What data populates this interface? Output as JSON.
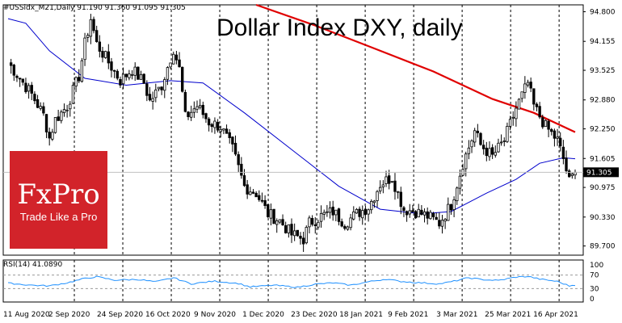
{
  "header": {
    "symbol_info": "#USSidx_M21,Daily  91.190 91.360 91.095 91.305",
    "title": "Dollar Index DXY, daily"
  },
  "logo": {
    "name": "FxPro",
    "tagline": "Trade Like a Pro",
    "color": "#d2232a"
  },
  "rsi_panel": {
    "label": "RSI(14) 41.0890"
  },
  "chart_data": [
    {
      "type": "candlestick",
      "title": "Dollar Index DXY, daily",
      "ylim": [
        89.5,
        94.95
      ],
      "y_ticks": [
        "94.800",
        "94.155",
        "93.525",
        "92.880",
        "92.250",
        "91.605",
        "90.975",
        "90.330",
        "89.700"
      ],
      "x_ticks": [
        "11 Aug 2020",
        "2 Sep 2020",
        "24 Sep 2020",
        "16 Oct 2020",
        "9 Nov 2020",
        "1 Dec 2020",
        "23 Dec 2020",
        "18 Jan 2021",
        "9 Feb 2021",
        "3 Mar 2021",
        "25 Mar 2021",
        "16 Apr 2021"
      ],
      "last_price": "91.305",
      "anchors": [
        {
          "d": 0,
          "c": 93.7
        },
        {
          "d": 4,
          "c": 93.35
        },
        {
          "d": 8,
          "c": 93.0
        },
        {
          "d": 12,
          "c": 92.55
        },
        {
          "d": 14,
          "c": 92.05
        },
        {
          "d": 16,
          "c": 92.45
        },
        {
          "d": 20,
          "c": 92.75
        },
        {
          "d": 24,
          "c": 93.4
        },
        {
          "d": 26,
          "c": 94.1
        },
        {
          "d": 28,
          "c": 94.65
        },
        {
          "d": 30,
          "c": 94.1
        },
        {
          "d": 34,
          "c": 93.7
        },
        {
          "d": 38,
          "c": 93.3
        },
        {
          "d": 42,
          "c": 93.55
        },
        {
          "d": 46,
          "c": 93.25
        },
        {
          "d": 48,
          "c": 92.85
        },
        {
          "d": 52,
          "c": 93.2
        },
        {
          "d": 56,
          "c": 94.0
        },
        {
          "d": 58,
          "c": 93.55
        },
        {
          "d": 60,
          "c": 92.5
        },
        {
          "d": 64,
          "c": 92.75
        },
        {
          "d": 68,
          "c": 92.4
        },
        {
          "d": 72,
          "c": 92.3
        },
        {
          "d": 76,
          "c": 91.8
        },
        {
          "d": 80,
          "c": 91.0
        },
        {
          "d": 84,
          "c": 90.85
        },
        {
          "d": 88,
          "c": 90.4
        },
        {
          "d": 92,
          "c": 90.25
        },
        {
          "d": 96,
          "c": 89.95
        },
        {
          "d": 100,
          "c": 89.85
        },
        {
          "d": 102,
          "c": 90.2
        },
        {
          "d": 106,
          "c": 90.35
        },
        {
          "d": 110,
          "c": 90.45
        },
        {
          "d": 114,
          "c": 90.2
        },
        {
          "d": 118,
          "c": 90.4
        },
        {
          "d": 122,
          "c": 90.55
        },
        {
          "d": 126,
          "c": 91.05
        },
        {
          "d": 130,
          "c": 91.2
        },
        {
          "d": 134,
          "c": 90.5
        },
        {
          "d": 138,
          "c": 90.45
        },
        {
          "d": 142,
          "c": 90.35
        },
        {
          "d": 146,
          "c": 90.2
        },
        {
          "d": 150,
          "c": 90.6
        },
        {
          "d": 154,
          "c": 91.5
        },
        {
          "d": 158,
          "c": 92.2
        },
        {
          "d": 160,
          "c": 91.9
        },
        {
          "d": 164,
          "c": 91.65
        },
        {
          "d": 168,
          "c": 92.0
        },
        {
          "d": 172,
          "c": 92.7
        },
        {
          "d": 176,
          "c": 93.25
        },
        {
          "d": 178,
          "c": 92.75
        },
        {
          "d": 182,
          "c": 92.3
        },
        {
          "d": 186,
          "c": 92.0
        },
        {
          "d": 188,
          "c": 91.6
        },
        {
          "d": 190,
          "c": 91.1
        },
        {
          "d": 192,
          "c": 91.305
        }
      ],
      "ma_slow": [
        {
          "d": 84,
          "v": 94.95
        },
        {
          "d": 104,
          "v": 94.5
        },
        {
          "d": 124,
          "v": 94.0
        },
        {
          "d": 144,
          "v": 93.5
        },
        {
          "d": 164,
          "v": 92.9
        },
        {
          "d": 178,
          "v": 92.6
        },
        {
          "d": 192,
          "v": 92.18
        }
      ],
      "ma_fast": [
        {
          "d": 0,
          "v": 94.65
        },
        {
          "d": 6,
          "v": 94.55
        },
        {
          "d": 14,
          "v": 93.95
        },
        {
          "d": 26,
          "v": 93.35
        },
        {
          "d": 40,
          "v": 93.2
        },
        {
          "d": 55,
          "v": 93.3
        },
        {
          "d": 66,
          "v": 93.25
        },
        {
          "d": 80,
          "v": 92.6
        },
        {
          "d": 98,
          "v": 91.7
        },
        {
          "d": 112,
          "v": 91.0
        },
        {
          "d": 126,
          "v": 90.5
        },
        {
          "d": 140,
          "v": 90.4
        },
        {
          "d": 150,
          "v": 90.45
        },
        {
          "d": 162,
          "v": 90.85
        },
        {
          "d": 172,
          "v": 91.15
        },
        {
          "d": 180,
          "v": 91.5
        },
        {
          "d": 188,
          "v": 91.62
        },
        {
          "d": 192,
          "v": 91.6
        }
      ],
      "colors": {
        "slow_ma": "#e00000",
        "fast_ma": "#0000cc",
        "candle": "#000000"
      }
    },
    {
      "type": "line",
      "name": "RSI(14) 41.0890",
      "ylim": [
        0,
        100
      ],
      "y_ticks": [
        "100",
        "70",
        "30",
        "0"
      ],
      "levels": [
        70,
        30
      ],
      "color": "#1e90ff",
      "points": [
        {
          "d": 0,
          "v": 46
        },
        {
          "d": 8,
          "v": 40
        },
        {
          "d": 14,
          "v": 38
        },
        {
          "d": 20,
          "v": 47
        },
        {
          "d": 26,
          "v": 60
        },
        {
          "d": 30,
          "v": 65
        },
        {
          "d": 36,
          "v": 55
        },
        {
          "d": 44,
          "v": 57
        },
        {
          "d": 50,
          "v": 50
        },
        {
          "d": 56,
          "v": 62
        },
        {
          "d": 62,
          "v": 44
        },
        {
          "d": 70,
          "v": 52
        },
        {
          "d": 78,
          "v": 45
        },
        {
          "d": 82,
          "v": 35
        },
        {
          "d": 90,
          "v": 40
        },
        {
          "d": 98,
          "v": 34
        },
        {
          "d": 104,
          "v": 43
        },
        {
          "d": 110,
          "v": 47
        },
        {
          "d": 116,
          "v": 40
        },
        {
          "d": 122,
          "v": 50
        },
        {
          "d": 128,
          "v": 58
        },
        {
          "d": 132,
          "v": 52
        },
        {
          "d": 138,
          "v": 48
        },
        {
          "d": 146,
          "v": 44
        },
        {
          "d": 150,
          "v": 50
        },
        {
          "d": 156,
          "v": 62
        },
        {
          "d": 160,
          "v": 57
        },
        {
          "d": 166,
          "v": 54
        },
        {
          "d": 172,
          "v": 64
        },
        {
          "d": 176,
          "v": 66
        },
        {
          "d": 180,
          "v": 58
        },
        {
          "d": 186,
          "v": 51
        },
        {
          "d": 190,
          "v": 38
        },
        {
          "d": 192,
          "v": 41
        }
      ]
    }
  ]
}
